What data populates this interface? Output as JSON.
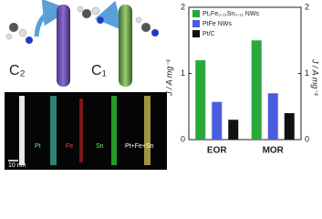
{
  "figure": {
    "c2": "C₂",
    "c1": "C₁",
    "scale": "10 nm",
    "maps": [
      "Pt",
      "Fe",
      "Sn",
      "Pt+Fe+Sn"
    ]
  },
  "chart_data": {
    "type": "bar",
    "y_label": "J / A mg⁻¹",
    "y2_label": "J / A mg⁻¹",
    "categories": [
      "EOR",
      "MOR"
    ],
    "series": [
      {
        "name": "Pt₁Fe₀.₁₁Sn₀.₁₁ NWs",
        "color": "#2aa83a",
        "values": [
          1.2,
          1.5
        ]
      },
      {
        "name": "PtFe NWs",
        "color": "#4a5ce0",
        "values": [
          0.57,
          0.7
        ]
      },
      {
        "name": "Pt/C",
        "color": "#111111",
        "values": [
          0.3,
          0.4
        ]
      }
    ],
    "ylim": [
      0,
      2
    ],
    "yticks": [
      0,
      1,
      2
    ],
    "y2lim": [
      0,
      2
    ],
    "y2ticks": [
      0,
      1,
      2
    ],
    "legend": "upper-left"
  }
}
